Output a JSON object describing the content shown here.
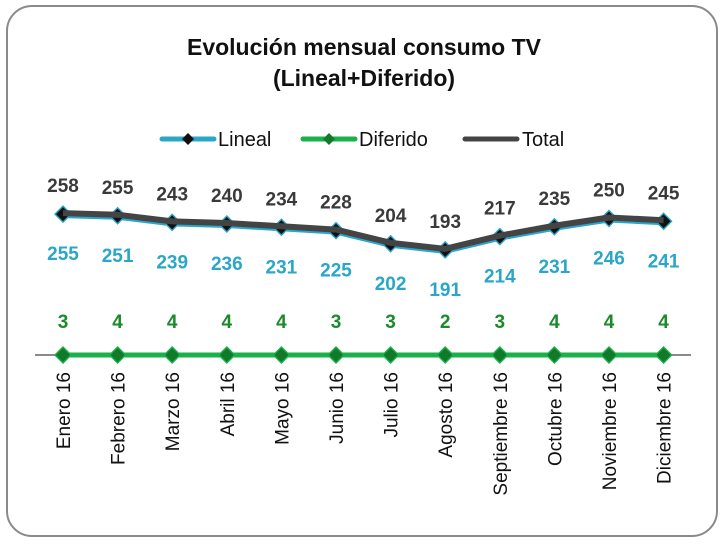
{
  "chart_data": {
    "type": "line",
    "title": "Evolución mensual consumo TV",
    "subtitle": "(Lineal+Diferido)",
    "xlabel": "",
    "ylabel": "",
    "categories": [
      "Enero 16",
      "Febrero 16",
      "Marzo 16",
      "Abril 16",
      "Mayo 16",
      "Junio 16",
      "Julio 16",
      "Agosto 16",
      "Septiembre 16",
      "Octubre 16",
      "Noviembre 16",
      "Diciembre 16"
    ],
    "series": [
      {
        "name": "Lineal",
        "color": "#2aa6c8",
        "label_color": "#2aa6c8",
        "values": [
          255,
          251,
          239,
          236,
          231,
          225,
          202,
          191,
          214,
          231,
          246,
          241
        ]
      },
      {
        "name": "Diferido",
        "color": "#1ab04a",
        "label_color": "#1a8a2a",
        "values": [
          3,
          4,
          4,
          4,
          4,
          3,
          3,
          2,
          3,
          4,
          4,
          4
        ]
      },
      {
        "name": "Total",
        "color": "#444444",
        "label_color": "#3a3a3a",
        "values": [
          258,
          255,
          243,
          240,
          234,
          228,
          204,
          193,
          217,
          235,
          250,
          245
        ]
      }
    ],
    "ylim": [
      0,
      260
    ],
    "grid": false,
    "legend_position": "top"
  }
}
